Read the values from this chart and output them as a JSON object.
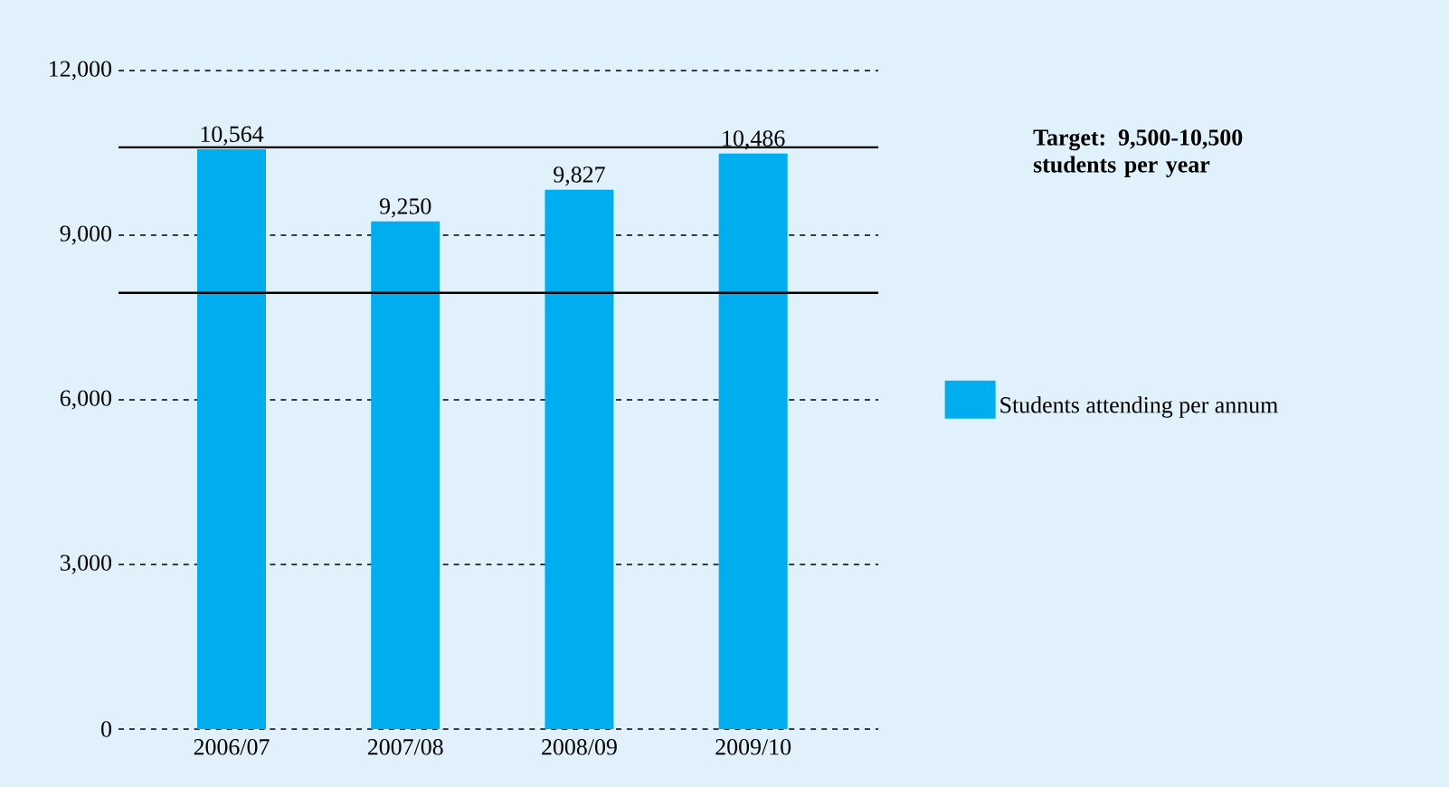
{
  "chart_data": {
    "type": "bar",
    "categories": [
      "2006/07",
      "2007/08",
      "2008/09",
      "2009/10"
    ],
    "series": [
      {
        "name": "Students attending per annum",
        "color": "#00aeef",
        "values": [
          10564,
          9250,
          9827,
          10486
        ],
        "value_labels": [
          "10,564",
          "9,250",
          "9,827",
          "10,486"
        ]
      }
    ],
    "ylim": [
      0,
      12000
    ],
    "yticks": [
      {
        "value": 0,
        "label": "0"
      },
      {
        "value": 3000,
        "label": "3,000"
      },
      {
        "value": 6000,
        "label": "6,000"
      },
      {
        "value": 9000,
        "label": "9,000"
      },
      {
        "value": 12000,
        "label": "12,000"
      }
    ],
    "grid": "y",
    "legend": "right",
    "ref_lines": [
      {
        "axis": "y",
        "value": 7950,
        "color": "#000000"
      },
      {
        "axis": "y",
        "value": 10600,
        "color": "#000000"
      }
    ],
    "annotations": [
      "Target: 9,500-10,500 students per year"
    ]
  }
}
